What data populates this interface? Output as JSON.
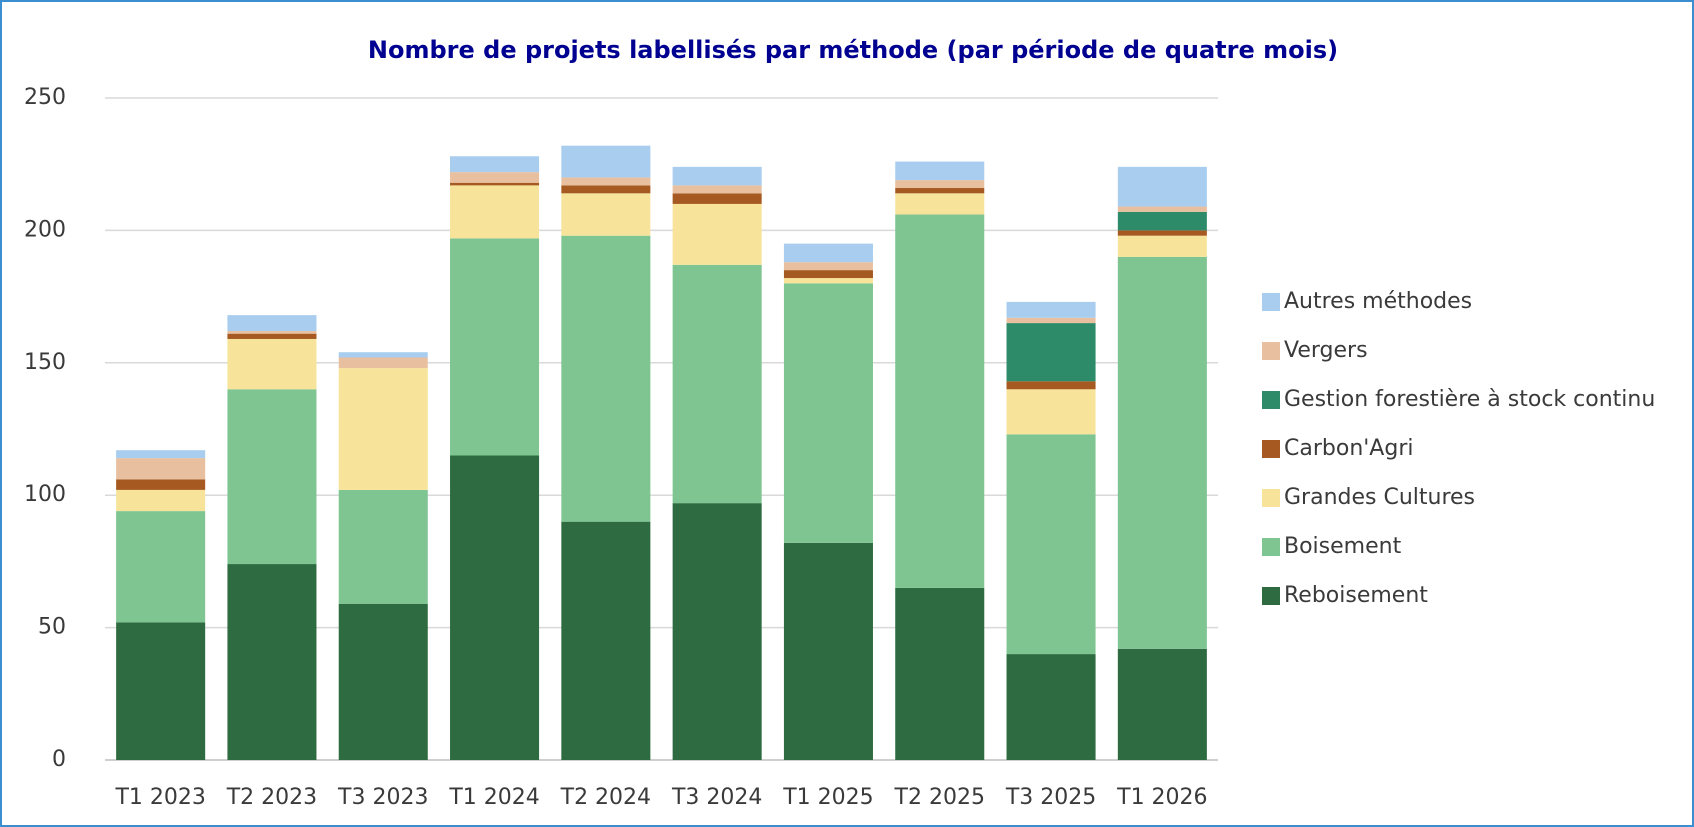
{
  "chart_data": {
    "type": "stacked_bar",
    "title": "Nombre de projets labellisés par méthode (par période de quatre mois)",
    "categories": [
      "T1 2023",
      "T2 2023",
      "T3 2023",
      "T1 2024",
      "T2 2024",
      "T3 2024",
      "T1 2025",
      "T2 2025",
      "T3 2025",
      "T1 2026"
    ],
    "series": [
      {
        "name": "Reboisement",
        "color": "#2e6b40",
        "values": [
          52,
          74,
          59,
          115,
          90,
          97,
          82,
          65,
          40,
          42
        ]
      },
      {
        "name": "Boisement",
        "color": "#7ec592",
        "values": [
          42,
          66,
          43,
          82,
          108,
          90,
          98,
          141,
          83,
          148
        ]
      },
      {
        "name": "Grandes Cultures",
        "color": "#f7e49a",
        "values": [
          8,
          19,
          46,
          20,
          16,
          23,
          2,
          8,
          17,
          8
        ]
      },
      {
        "name": "Carbon'Agri",
        "color": "#a65a22",
        "values": [
          4,
          2,
          0,
          1,
          3,
          4,
          3,
          2,
          3,
          2
        ]
      },
      {
        "name": "Gestion forestière à stock continu",
        "color": "#2e8b6a",
        "values": [
          0,
          0,
          0,
          0,
          0,
          0,
          0,
          0,
          22,
          7
        ]
      },
      {
        "name": "Vergers",
        "color": "#e8c0a0",
        "values": [
          8,
          1,
          4,
          4,
          3,
          3,
          3,
          3,
          2,
          2
        ]
      },
      {
        "name": "Autres méthodes",
        "color": "#a8cdef",
        "values": [
          3,
          6,
          2,
          6,
          12,
          7,
          7,
          7,
          6,
          15
        ]
      }
    ],
    "ylim": [
      0,
      250
    ],
    "yticks": [
      0,
      50,
      100,
      150,
      200,
      250
    ],
    "grid": true,
    "legend": "right"
  }
}
